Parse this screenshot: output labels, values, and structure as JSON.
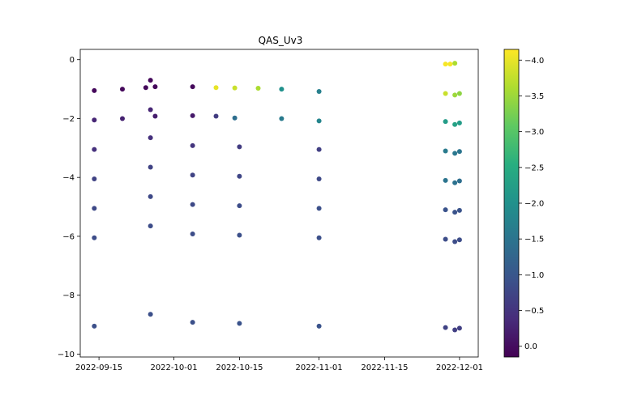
{
  "chart_data": {
    "type": "scatter",
    "title": "QAS_Uv3",
    "xlabel": "",
    "ylabel": "",
    "x_ticks": [
      "2022-09-15",
      "2022-10-01",
      "2022-10-15",
      "2022-11-01",
      "2022-11-15",
      "2022-12-01"
    ],
    "y_ticks": [
      "0",
      "−2",
      "−4",
      "−6",
      "−8",
      "−10"
    ],
    "xlim": [
      "2022-09-11",
      "2022-12-05"
    ],
    "ylim": [
      -10.1,
      0.35
    ],
    "grid": false,
    "colorbar": {
      "colormap": "viridis",
      "range": [
        -4.15,
        0.15
      ],
      "ticks": [
        "0.0",
        "−0.5",
        "−1.0",
        "−1.5",
        "−2.0",
        "−2.5",
        "−3.0",
        "−3.5",
        "−4.0"
      ],
      "tick_values": [
        0.0,
        -0.5,
        -1.0,
        -1.5,
        -2.0,
        -2.5,
        -3.0,
        -3.5,
        -4.0
      ]
    },
    "series": [
      {
        "segment1": [
          [
            "2022-09-14",
            -1.05,
            0.05
          ],
          [
            "2022-09-20",
            -1.0,
            0.05
          ],
          [
            "2022-09-25",
            -0.95,
            0.05
          ],
          [
            "2022-09-26",
            -0.7,
            0.05
          ],
          [
            "2022-09-27",
            -0.92,
            0.05
          ],
          [
            "2022-10-05",
            -0.92,
            0.05
          ],
          [
            "2022-10-10",
            -0.95,
            -4.0
          ],
          [
            "2022-10-14",
            -0.96,
            -3.8
          ],
          [
            "2022-10-19",
            -0.97,
            -3.6
          ],
          [
            "2022-10-24",
            -1.0,
            -2.0
          ],
          [
            "2022-11-01",
            -1.08,
            -1.7
          ]
        ],
        "segment2": [
          [
            "2022-11-28",
            -0.15,
            -4.1
          ],
          [
            "2022-11-29",
            -0.15,
            -4.1
          ],
          [
            "2022-11-30",
            -0.12,
            -3.6
          ],
          [
            "2022-11-28",
            -1.15,
            -3.8
          ],
          [
            "2022-11-30",
            -1.2,
            -3.5
          ],
          [
            "2022-12-01",
            -1.15,
            -3.4
          ]
        ]
      },
      {
        "segment1": [
          [
            "2022-09-14",
            -2.05,
            -0.3
          ],
          [
            "2022-09-20",
            -2.0,
            -0.25
          ],
          [
            "2022-09-26",
            -1.7,
            -0.3
          ],
          [
            "2022-09-27",
            -1.92,
            -0.2
          ],
          [
            "2022-10-05",
            -1.9,
            -0.15
          ],
          [
            "2022-10-10",
            -1.92,
            -0.6
          ],
          [
            "2022-10-14",
            -1.98,
            -1.4
          ],
          [
            "2022-10-24",
            -2.0,
            -1.6
          ],
          [
            "2022-11-01",
            -2.08,
            -1.8
          ]
        ],
        "segment2": [
          [
            "2022-11-28",
            -2.1,
            -2.2
          ],
          [
            "2022-11-30",
            -2.2,
            -2.3
          ],
          [
            "2022-12-01",
            -2.15,
            -2.2
          ]
        ]
      },
      {
        "segment1": [
          [
            "2022-09-14",
            -3.05,
            -0.45
          ],
          [
            "2022-09-26",
            -2.65,
            -0.45
          ],
          [
            "2022-10-05",
            -2.92,
            -0.5
          ],
          [
            "2022-10-15",
            -2.96,
            -0.6
          ],
          [
            "2022-11-01",
            -3.05,
            -0.65
          ]
        ],
        "segment2": [
          [
            "2022-11-28",
            -3.1,
            -1.6
          ],
          [
            "2022-11-30",
            -3.18,
            -1.55
          ],
          [
            "2022-12-01",
            -3.12,
            -1.5
          ]
        ]
      },
      {
        "segment1": [
          [
            "2022-09-14",
            -4.05,
            -0.7
          ],
          [
            "2022-09-26",
            -3.65,
            -0.7
          ],
          [
            "2022-10-05",
            -3.92,
            -0.7
          ],
          [
            "2022-10-15",
            -3.96,
            -0.75
          ],
          [
            "2022-11-01",
            -4.05,
            -0.8
          ]
        ],
        "segment2": [
          [
            "2022-11-28",
            -4.1,
            -1.5
          ],
          [
            "2022-11-30",
            -4.18,
            -1.45
          ],
          [
            "2022-12-01",
            -4.12,
            -1.4
          ]
        ]
      },
      {
        "segment1": [
          [
            "2022-09-14",
            -5.05,
            -0.8
          ],
          [
            "2022-09-26",
            -4.65,
            -0.8
          ],
          [
            "2022-10-05",
            -4.92,
            -0.8
          ],
          [
            "2022-10-15",
            -4.96,
            -0.85
          ],
          [
            "2022-11-01",
            -5.05,
            -0.9
          ]
        ],
        "segment2": [
          [
            "2022-11-28",
            -5.1,
            -0.95
          ],
          [
            "2022-11-30",
            -5.18,
            -0.95
          ],
          [
            "2022-12-01",
            -5.12,
            -0.95
          ]
        ]
      },
      {
        "segment1": [
          [
            "2022-09-14",
            -6.05,
            -0.85
          ],
          [
            "2022-09-26",
            -5.65,
            -0.85
          ],
          [
            "2022-10-05",
            -5.92,
            -0.85
          ],
          [
            "2022-10-15",
            -5.96,
            -0.9
          ],
          [
            "2022-11-01",
            -6.05,
            -0.9
          ]
        ],
        "segment2": [
          [
            "2022-11-28",
            -6.1,
            -0.85
          ],
          [
            "2022-11-30",
            -6.18,
            -0.85
          ],
          [
            "2022-12-01",
            -6.12,
            -0.85
          ]
        ]
      },
      {
        "segment1": [
          [
            "2022-09-14",
            -9.05,
            -0.9
          ],
          [
            "2022-09-26",
            -8.65,
            -0.9
          ],
          [
            "2022-10-05",
            -8.92,
            -0.9
          ],
          [
            "2022-10-15",
            -8.96,
            -0.95
          ],
          [
            "2022-11-01",
            -9.05,
            -0.95
          ]
        ],
        "segment2": [
          [
            "2022-11-28",
            -9.1,
            -0.7
          ],
          [
            "2022-11-30",
            -9.18,
            -0.65
          ],
          [
            "2022-12-01",
            -9.12,
            -0.65
          ]
        ]
      }
    ]
  }
}
